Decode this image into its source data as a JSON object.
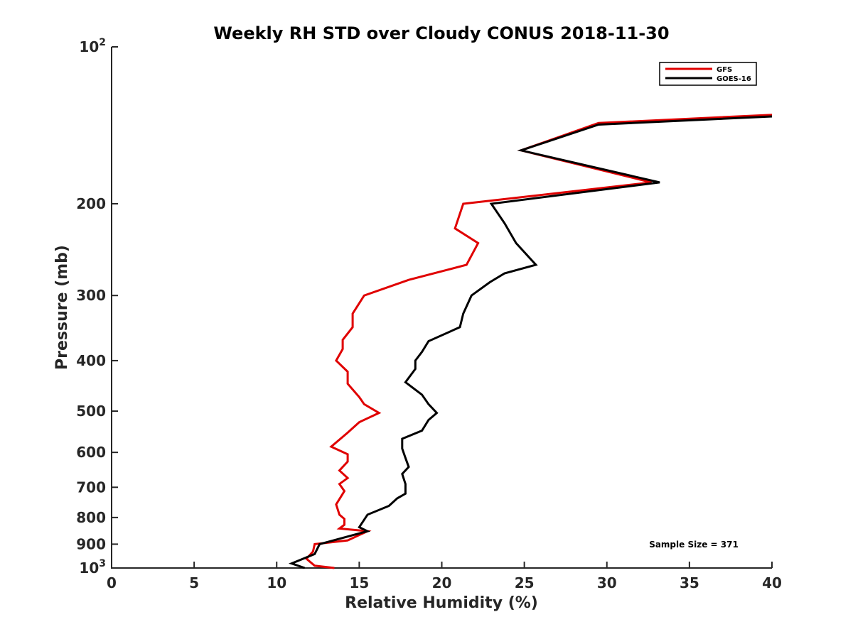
{
  "chart_data": {
    "type": "line",
    "title": "Weekly RH STD over Cloudy CONUS 2018-11-30",
    "xlabel": "Relative Humidity (%)",
    "ylabel": "Pressure (mb)",
    "xlim": [
      0,
      40
    ],
    "ylim": [
      100,
      1000
    ],
    "yscale": "log",
    "y_reversed": true,
    "x_ticks": [
      0,
      5,
      10,
      15,
      20,
      25,
      30,
      35,
      40
    ],
    "x_tick_labels": [
      "0",
      "5",
      "10",
      "15",
      "20",
      "25",
      "30",
      "35",
      "40"
    ],
    "y_ticks": [
      {
        "value": 100,
        "base": "10",
        "exp": "2"
      },
      {
        "value": 200,
        "label": "200"
      },
      {
        "value": 300,
        "label": "300"
      },
      {
        "value": 400,
        "label": "400"
      },
      {
        "value": 500,
        "label": "500"
      },
      {
        "value": 600,
        "label": "600"
      },
      {
        "value": 700,
        "label": "700"
      },
      {
        "value": 800,
        "label": "800"
      },
      {
        "value": 900,
        "label": "900"
      },
      {
        "value": 1000,
        "base": "10",
        "exp": "3"
      }
    ],
    "legend": {
      "position": "top-right",
      "entries": [
        {
          "name": "GFS",
          "color": "#e00000"
        },
        {
          "name": "GOES-16",
          "color": "#000000"
        }
      ]
    },
    "annotation": "Sample Size = 371",
    "series": [
      {
        "name": "GFS",
        "color": "#e00000",
        "points": [
          [
            40.0,
            135
          ],
          [
            29.5,
            140
          ],
          [
            24.8,
            158
          ],
          [
            32.7,
            182
          ],
          [
            21.3,
            200
          ],
          [
            20.8,
            223
          ],
          [
            22.2,
            238
          ],
          [
            21.5,
            262
          ],
          [
            18.0,
            280
          ],
          [
            15.3,
            300
          ],
          [
            14.6,
            325
          ],
          [
            14.6,
            345
          ],
          [
            14.0,
            365
          ],
          [
            14.0,
            380
          ],
          [
            13.6,
            400
          ],
          [
            14.3,
            420
          ],
          [
            14.3,
            443
          ],
          [
            15.0,
            470
          ],
          [
            15.3,
            485
          ],
          [
            16.2,
            504
          ],
          [
            15.0,
            525
          ],
          [
            14.3,
            550
          ],
          [
            13.3,
            585
          ],
          [
            14.3,
            605
          ],
          [
            14.3,
            625
          ],
          [
            13.8,
            650
          ],
          [
            14.3,
            672
          ],
          [
            13.8,
            690
          ],
          [
            14.1,
            712
          ],
          [
            13.6,
            755
          ],
          [
            13.8,
            790
          ],
          [
            14.1,
            805
          ],
          [
            14.1,
            826
          ],
          [
            13.8,
            840
          ],
          [
            15.5,
            850
          ],
          [
            14.3,
            885
          ],
          [
            12.3,
            900
          ],
          [
            12.2,
            930
          ],
          [
            11.8,
            960
          ],
          [
            12.3,
            990
          ],
          [
            13.5,
            1000
          ]
        ]
      },
      {
        "name": "GOES-16",
        "color": "#000000",
        "points": [
          [
            40.0,
            136
          ],
          [
            29.5,
            141
          ],
          [
            24.8,
            158
          ],
          [
            33.2,
            182
          ],
          [
            23.0,
            200
          ],
          [
            23.8,
            218
          ],
          [
            24.5,
            238
          ],
          [
            25.7,
            262
          ],
          [
            23.8,
            272
          ],
          [
            22.9,
            283
          ],
          [
            21.8,
            300
          ],
          [
            21.3,
            325
          ],
          [
            21.1,
            345
          ],
          [
            19.2,
            367
          ],
          [
            18.8,
            385
          ],
          [
            18.4,
            400
          ],
          [
            18.4,
            415
          ],
          [
            17.8,
            440
          ],
          [
            18.8,
            465
          ],
          [
            19.2,
            485
          ],
          [
            19.7,
            504
          ],
          [
            19.2,
            520
          ],
          [
            18.8,
            545
          ],
          [
            17.6,
            565
          ],
          [
            17.6,
            590
          ],
          [
            17.8,
            615
          ],
          [
            18.0,
            640
          ],
          [
            17.6,
            660
          ],
          [
            17.8,
            690
          ],
          [
            17.8,
            720
          ],
          [
            17.3,
            735
          ],
          [
            16.8,
            760
          ],
          [
            15.5,
            790
          ],
          [
            15.0,
            835
          ],
          [
            15.5,
            850
          ],
          [
            12.6,
            900
          ],
          [
            12.3,
            940
          ],
          [
            10.9,
            980
          ],
          [
            11.7,
            1000
          ]
        ]
      }
    ]
  }
}
